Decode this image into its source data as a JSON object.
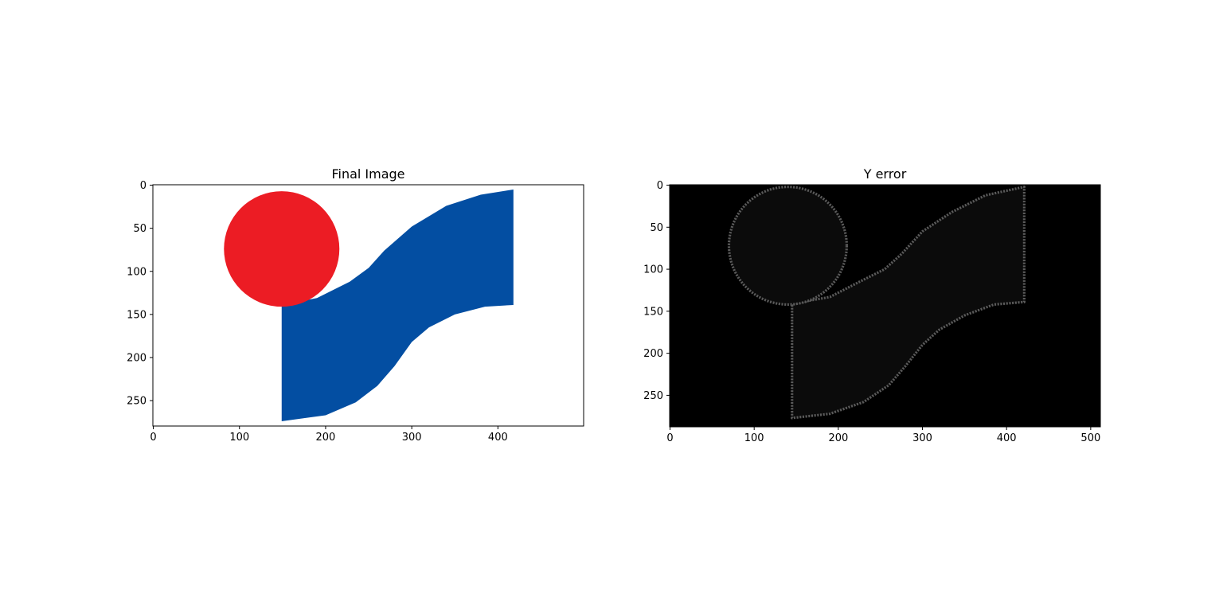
{
  "chart_data": [
    {
      "type": "image",
      "title": "Final Image",
      "xlim": [
        -0.5,
        499.5
      ],
      "ylim": [
        279.5,
        -0.5
      ],
      "xticks": [
        0,
        100,
        200,
        300,
        400
      ],
      "yticks": [
        0,
        50,
        100,
        150,
        200,
        250
      ],
      "background": "#ffffff",
      "colors": {
        "circle": "#ec1c24",
        "band": "#034ea2"
      },
      "circle": {
        "cx": 149,
        "cy": 74,
        "r": 67
      },
      "band": {
        "upper_edge": [
          [
            149,
            139
          ],
          [
            190,
            131
          ],
          [
            228,
            112
          ],
          [
            250,
            96
          ],
          [
            268,
            76
          ],
          [
            300,
            48
          ],
          [
            340,
            24
          ],
          [
            380,
            11
          ],
          [
            418,
            5
          ]
        ],
        "right_edge_bottom": [
          418,
          139
        ],
        "lower_edge": [
          [
            418,
            139
          ],
          [
            385,
            141
          ],
          [
            350,
            150
          ],
          [
            320,
            165
          ],
          [
            300,
            182
          ],
          [
            280,
            210
          ],
          [
            260,
            233
          ],
          [
            235,
            252
          ],
          [
            200,
            267
          ],
          [
            149,
            274
          ]
        ]
      }
    },
    {
      "type": "image",
      "title": "Y error",
      "xlim": [
        -0.5,
        511.5
      ],
      "ylim": [
        287.5,
        -0.5
      ],
      "xticks": [
        0,
        100,
        200,
        300,
        400,
        500
      ],
      "yticks": [
        0,
        50,
        100,
        150,
        200,
        250
      ],
      "background": "#000000",
      "colors": {
        "fill": "#0b0b0b",
        "edge": "#5a5a5a"
      },
      "circle": {
        "cx": 140,
        "cy": 72,
        "r": 70
      },
      "band": {
        "upper_edge": [
          [
            145,
            141
          ],
          [
            190,
            133
          ],
          [
            225,
            115
          ],
          [
            255,
            100
          ],
          [
            275,
            82
          ],
          [
            300,
            55
          ],
          [
            335,
            32
          ],
          [
            375,
            12
          ],
          [
            421,
            2
          ]
        ],
        "right_edge_bottom": [
          421,
          139
        ],
        "lower_edge": [
          [
            421,
            139
          ],
          [
            385,
            142
          ],
          [
            350,
            155
          ],
          [
            320,
            172
          ],
          [
            300,
            190
          ],
          [
            280,
            215
          ],
          [
            260,
            238
          ],
          [
            230,
            258
          ],
          [
            190,
            272
          ],
          [
            145,
            277
          ]
        ]
      }
    }
  ]
}
